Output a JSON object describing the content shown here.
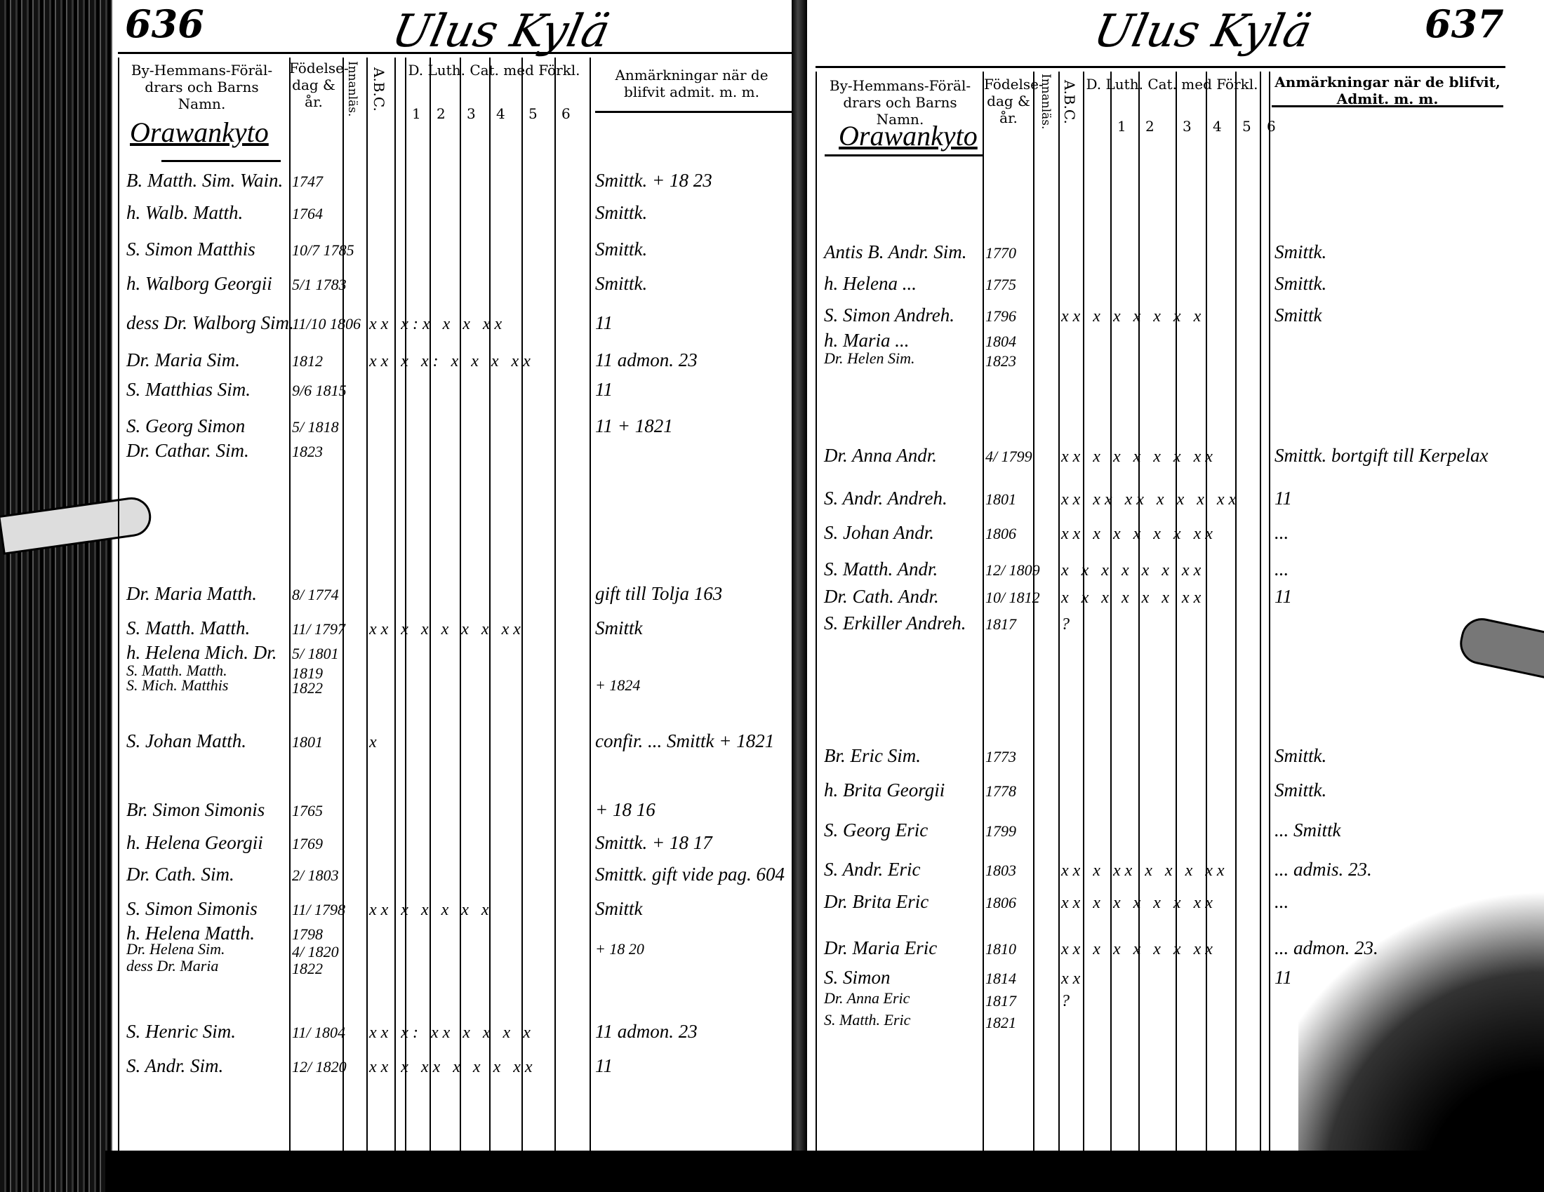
{
  "title": "Ulus Kylä",
  "left_page": {
    "page_number": "636",
    "headers": {
      "names": "By-Hemmans-Föräl-drars och Barns Namn.",
      "birth": "Födelse-dag & år.",
      "innanlas": "Innanläs.",
      "abc": "A.B.C.",
      "catechism": "D. Luth. Cat. med Förkl.",
      "cat_columns": [
        "1",
        "2",
        "3",
        "4",
        "5",
        "6"
      ],
      "remarks": "Anmärkningar när de blifvit admit. m. m."
    },
    "village": "Orawankyto",
    "rows": [
      {
        "name": "B. Matth. Sim. Wain.",
        "birth": "1747",
        "marks": "",
        "remark": "Smittk. + 18 23"
      },
      {
        "name": "h. Walb. Matth.",
        "birth": "1764",
        "marks": "",
        "remark": "Smittk."
      },
      {
        "name": "S. Simon Matthis",
        "birth": "10/7 1785",
        "marks": "",
        "remark": "Smittk."
      },
      {
        "name": "h. Walborg Georgii",
        "birth": "5/1 1783",
        "marks": "",
        "remark": "Smittk."
      },
      {
        "name": "dess Dr. Walborg Sim.",
        "birth": "11/10 1806",
        "marks": "xx x:x x x xx",
        "remark": "11"
      },
      {
        "name": "Dr. Maria Sim.",
        "birth": "1812",
        "marks": "xx x x: x x x xx",
        "remark": "11 admon. 23"
      },
      {
        "name": "S. Matthias Sim.",
        "birth": "9/6 1815",
        "marks": "",
        "remark": "11"
      },
      {
        "name": "S. Georg Simon",
        "birth": "5/ 1818",
        "marks": "",
        "remark": "11 + 1821"
      },
      {
        "name": "Dr. Cathar. Sim.",
        "birth": "1823",
        "marks": "",
        "remark": ""
      },
      {
        "name": "Dr. Maria Matth.",
        "birth": "8/ 1774",
        "marks": "",
        "remark": "gift till Tolja 163"
      },
      {
        "name": "S. Matth. Matth.",
        "birth": "11/ 1797",
        "marks": "xx x x x x x xx",
        "remark": "Smittk"
      },
      {
        "name": "h. Helena Mich. Dr.",
        "birth": "5/ 1801",
        "marks": "",
        "remark": ""
      },
      {
        "name": "S. Matth. Matth.",
        "birth": "1819",
        "marks": "",
        "remark": ""
      },
      {
        "name": "S. Mich. Matthis",
        "birth": "1822",
        "marks": "",
        "remark": "+ 1824"
      },
      {
        "name": "S. Johan Matth.",
        "birth": "1801",
        "marks": "x",
        "remark": "confir. ... Smittk + 1821"
      },
      {
        "name": "Br. Simon Simonis",
        "birth": "1765",
        "marks": "",
        "remark": "+ 18 16"
      },
      {
        "name": "h. Helena Georgii",
        "birth": "1769",
        "marks": "",
        "remark": "Smittk. + 18 17"
      },
      {
        "name": "Dr. Cath. Sim.",
        "birth": "2/ 1803",
        "marks": "",
        "remark": "Smittk. gift vide pag. 604"
      },
      {
        "name": "S. Simon Simonis",
        "birth": "11/ 1798",
        "marks": "xx x x x x x",
        "remark": "Smittk"
      },
      {
        "name": "h. Helena Matth.",
        "birth": "1798",
        "marks": "",
        "remark": ""
      },
      {
        "name": "Dr. Helena Sim.",
        "birth": "4/ 1820",
        "marks": "",
        "remark": "+ 18 20"
      },
      {
        "name": "dess Dr. Maria",
        "birth": "1822",
        "marks": "",
        "remark": ""
      },
      {
        "name": "S. Henric Sim.",
        "birth": "11/ 1804",
        "marks": "xx x: xx x x x x",
        "remark": "11 admon. 23"
      },
      {
        "name": "S. Andr. Sim.",
        "birth": "12/ 1820",
        "marks": "xx x xx x x x xx",
        "remark": "11"
      }
    ]
  },
  "right_page": {
    "page_number": "637",
    "headers": {
      "names": "By-Hemmans-Föräl-drars och Barns Namn.",
      "birth": "Födelse-dag & år.",
      "innanlas": "Innanläs.",
      "abc": "A.B.C.",
      "catechism": "D. Luth. Cat. med Förkl.",
      "cat_columns": [
        "1",
        "2",
        "3",
        "4",
        "5",
        "6"
      ],
      "remarks": "Anmärkningar när de blifvit, Admit. m. m."
    },
    "village": "Orawankyto",
    "rows": [
      {
        "name": "Antis B. Andr. Sim.",
        "birth": "1770",
        "marks": "",
        "remark": "Smittk."
      },
      {
        "name": "h. Helena ...",
        "birth": "1775",
        "marks": "",
        "remark": "Smittk."
      },
      {
        "name": "S. Simon Andreh.",
        "birth": "1796",
        "marks": "xx x x x x x x",
        "remark": "Smittk"
      },
      {
        "name": "h. Maria ...",
        "birth": "1804",
        "marks": "",
        "remark": ""
      },
      {
        "name": "Dr. Helen Sim.",
        "birth": "1823",
        "marks": "",
        "remark": ""
      },
      {
        "name": "Dr. Anna Andr.",
        "birth": "4/ 1799",
        "marks": "xx x x x x x xx",
        "remark": "Smittk. bortgift till Kerpelax"
      },
      {
        "name": "S. Andr. Andreh.",
        "birth": "1801",
        "marks": "xx xx xx x x x xx",
        "remark": "11"
      },
      {
        "name": "S. Johan Andr.",
        "birth": "1806",
        "marks": "xx x x x x x xx",
        "remark": "..."
      },
      {
        "name": "S. Matth. Andr.",
        "birth": "12/ 1809",
        "marks": "x x x x x x xx",
        "remark": "..."
      },
      {
        "name": "Dr. Cath. Andr.",
        "birth": "10/ 1812",
        "marks": "x x x x x x xx",
        "remark": "11"
      },
      {
        "name": "S. Erkiller Andreh.",
        "birth": "1817",
        "marks": "?",
        "remark": ""
      },
      {
        "name": "Br. Eric Sim.",
        "birth": "1773",
        "marks": "",
        "remark": "Smittk."
      },
      {
        "name": "h. Brita Georgii",
        "birth": "1778",
        "marks": "",
        "remark": "Smittk."
      },
      {
        "name": "S. Georg Eric",
        "birth": "1799",
        "marks": "",
        "remark": "... Smittk"
      },
      {
        "name": "S. Andr. Eric",
        "birth": "1803",
        "marks": "xx x xx x x x xx",
        "remark": "... admis. 23."
      },
      {
        "name": "Dr. Brita Eric",
        "birth": "1806",
        "marks": "xx x x x x x xx",
        "remark": "..."
      },
      {
        "name": "Dr. Maria Eric",
        "birth": "1810",
        "marks": "xx x x x x x xx",
        "remark": "... admon. 23."
      },
      {
        "name": "S. Simon",
        "birth": "1814",
        "marks": "xx",
        "remark": "11"
      },
      {
        "name": "Dr. Anna Eric",
        "birth": "1817",
        "marks": "?",
        "remark": ""
      },
      {
        "name": "S. Matth. Eric",
        "birth": "1821",
        "marks": "",
        "remark": ""
      }
    ]
  }
}
